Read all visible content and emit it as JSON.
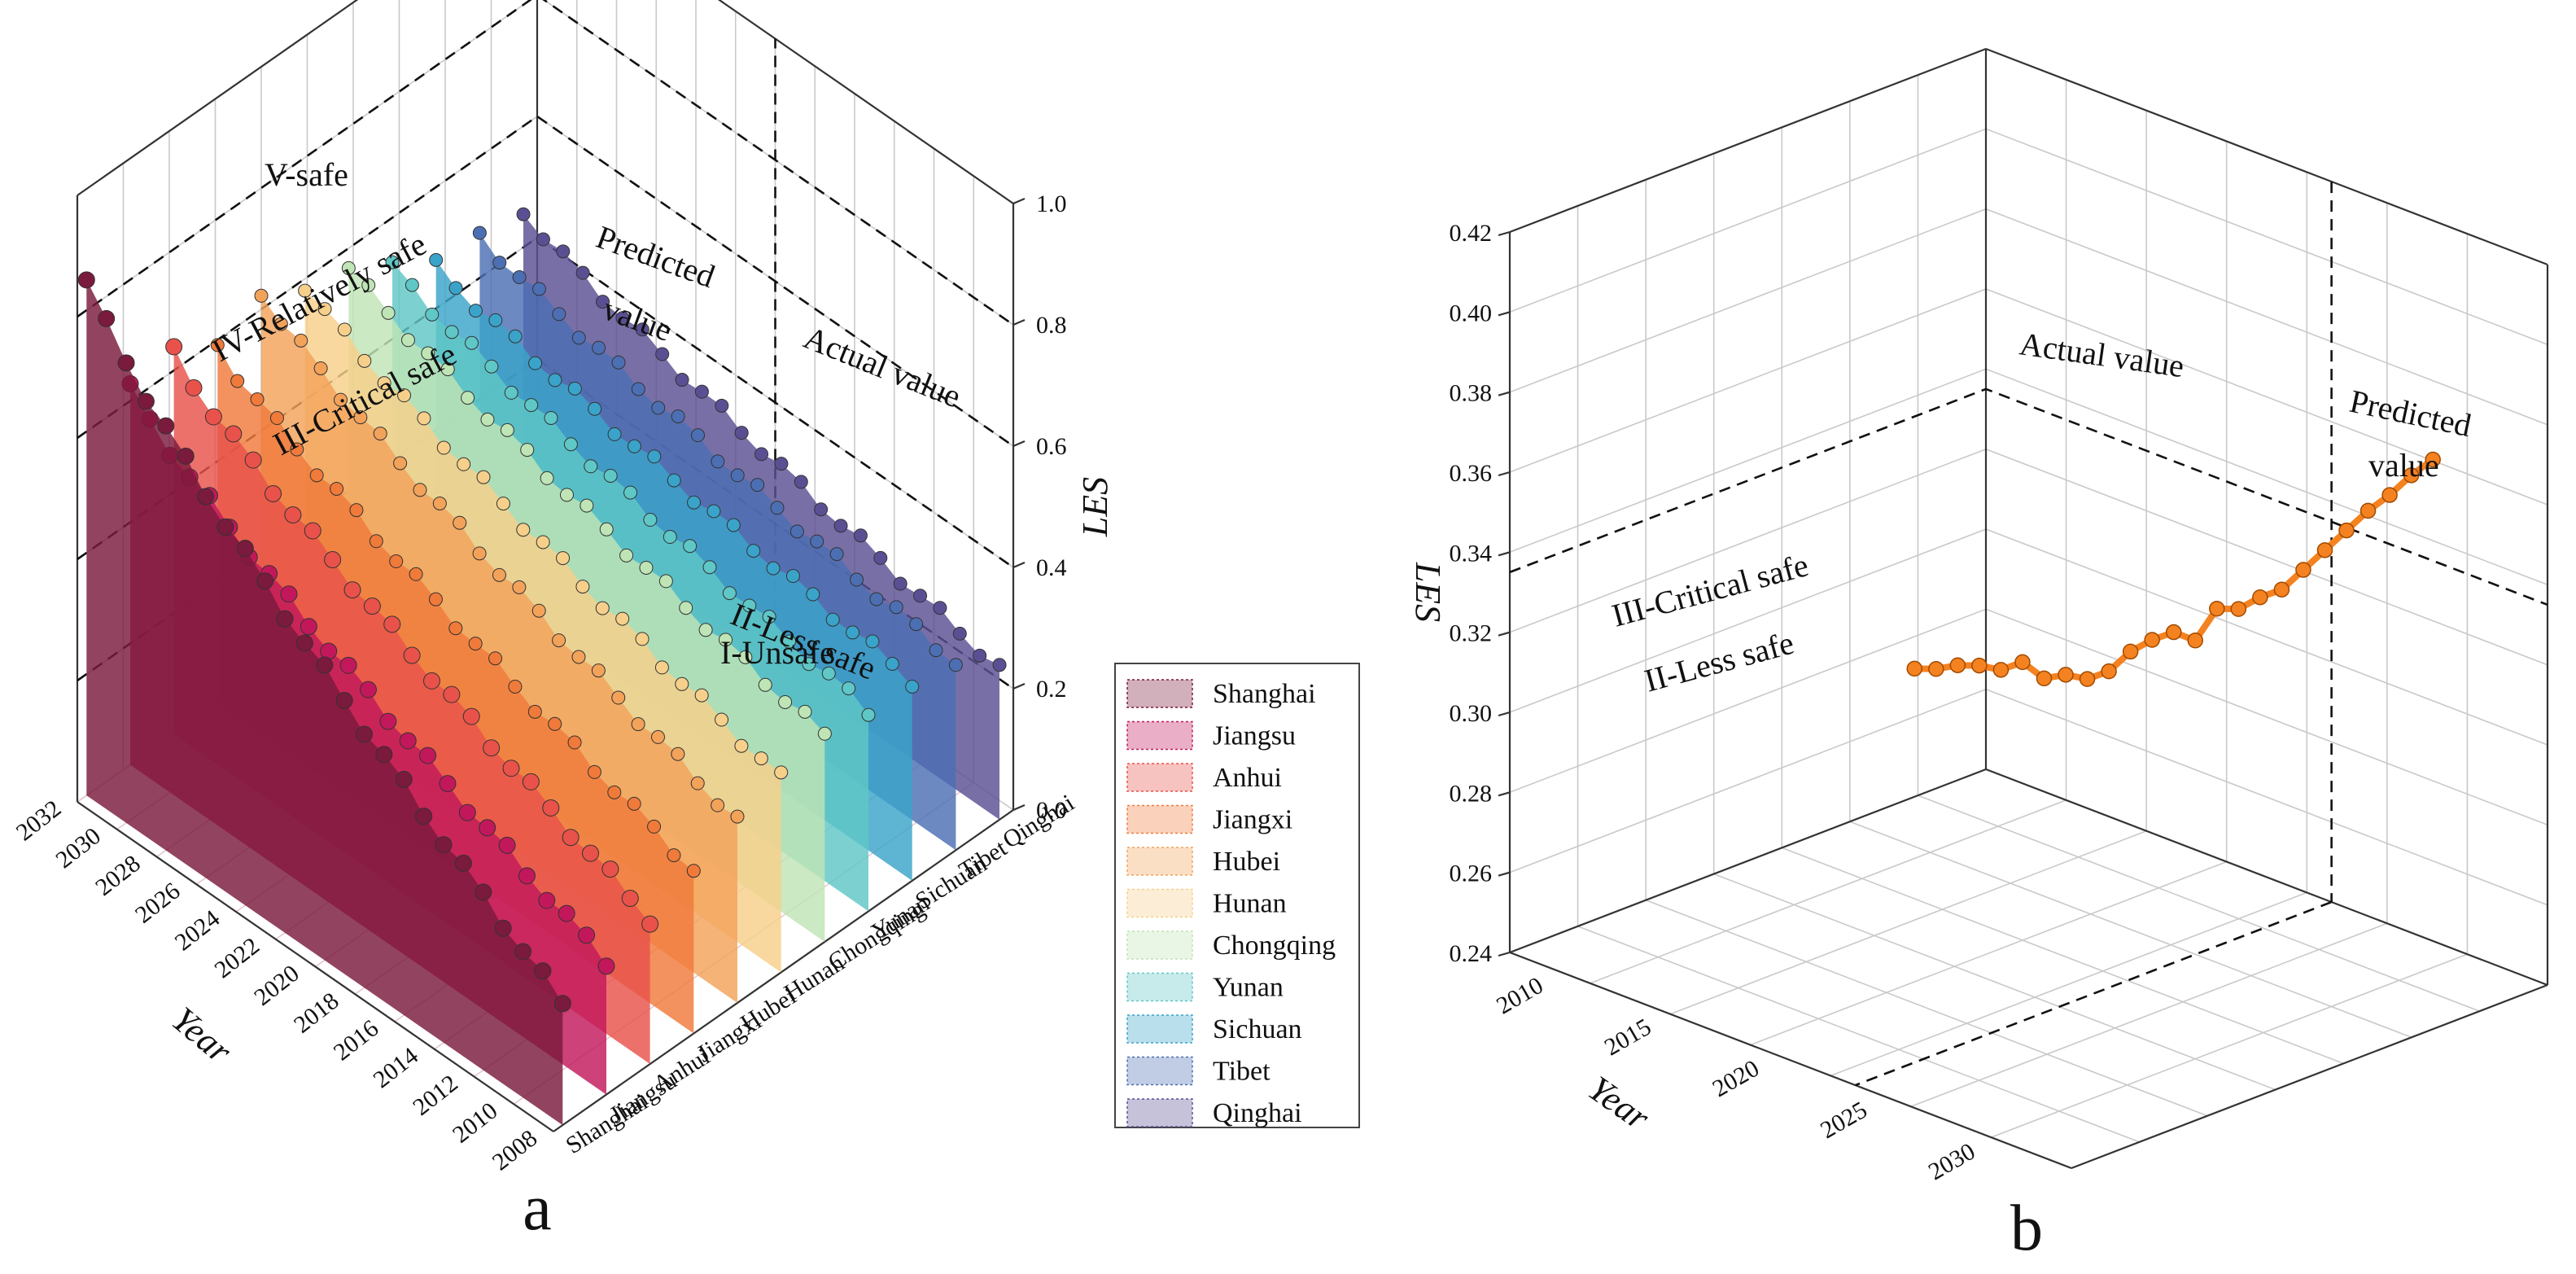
{
  "chart_data": [
    {
      "panel": "a",
      "type": "3d-wall-scatter",
      "xlabel": "Year",
      "ylabel": "",
      "zlabel": "LES",
      "year_ticks": [
        "2008",
        "2010",
        "2012",
        "2014",
        "2016",
        "2018",
        "2020",
        "2022",
        "2024",
        "2026",
        "2028",
        "2030",
        "2032"
      ],
      "z_ticks": [
        "0.0",
        "0.2",
        "0.4",
        "0.6",
        "0.8",
        "1.0"
      ],
      "zlim": [
        0,
        1
      ],
      "zone_labels": [
        "V-safe",
        "IV-Relatively safe",
        "III-Critical safe",
        "II-Less safe",
        "I-Unsafe"
      ],
      "zone_thresholds": [
        0.2,
        0.4,
        0.6,
        0.8
      ],
      "actual_label": "Actual value",
      "predicted_label": "Predicted value",
      "provinces": [
        "Shanghai",
        "Jiangsu",
        "Anhui",
        "Jiangxi",
        "Hubei",
        "Hunan",
        "Chongqing",
        "Yunan",
        "Sichuan",
        "Tibet",
        "Qinghai"
      ],
      "colors": [
        "#7a1a3c",
        "#c2185b",
        "#e8524a",
        "#f07a3a",
        "#f3a25a",
        "#f6cf8a",
        "#bfe4b5",
        "#5fc7c6",
        "#3aa3c9",
        "#4c6fb3",
        "#5b4f94"
      ],
      "series_start": [
        0.85,
        0.62,
        0.63,
        0.59,
        0.63,
        0.59,
        0.57,
        0.52,
        0.47,
        0.47,
        0.46
      ],
      "series_end": [
        0.2,
        0.22,
        0.24,
        0.27,
        0.3,
        0.32,
        0.34,
        0.33,
        0.33,
        0.31,
        0.25
      ]
    },
    {
      "panel": "b",
      "type": "3d-line",
      "xlabel": "Year",
      "ylabel": "LES",
      "x_ticks": [
        "2010",
        "2015",
        "2020",
        "2025",
        "2030"
      ],
      "y_ticks": [
        "0.24",
        "0.26",
        "0.28",
        "0.30",
        "0.32",
        "0.34",
        "0.36",
        "0.38",
        "0.40",
        "0.42"
      ],
      "ylim": [
        0.24,
        0.42
      ],
      "zone_labels": [
        "III-Critical safe",
        "II-Less safe"
      ],
      "zone_threshold": 0.335,
      "actual_label": "Actual value",
      "predicted_label": "Predicted value",
      "color": "#f58220",
      "x": [
        2008,
        2009,
        2010,
        2011,
        2012,
        2013,
        2014,
        2015,
        2016,
        2017,
        2018,
        2019,
        2020,
        2021,
        2022,
        2023,
        2024,
        2025,
        2026,
        2027,
        2028,
        2029,
        2030,
        2031,
        2032
      ],
      "values": [
        0.272,
        0.274,
        0.277,
        0.279,
        0.28,
        0.284,
        0.282,
        0.285,
        0.286,
        0.29,
        0.297,
        0.302,
        0.306,
        0.306,
        0.316,
        0.318,
        0.323,
        0.327,
        0.334,
        0.341,
        0.348,
        0.355,
        0.361,
        0.368,
        0.374
      ]
    }
  ],
  "panel_labels": {
    "a": "a",
    "b": "b"
  }
}
